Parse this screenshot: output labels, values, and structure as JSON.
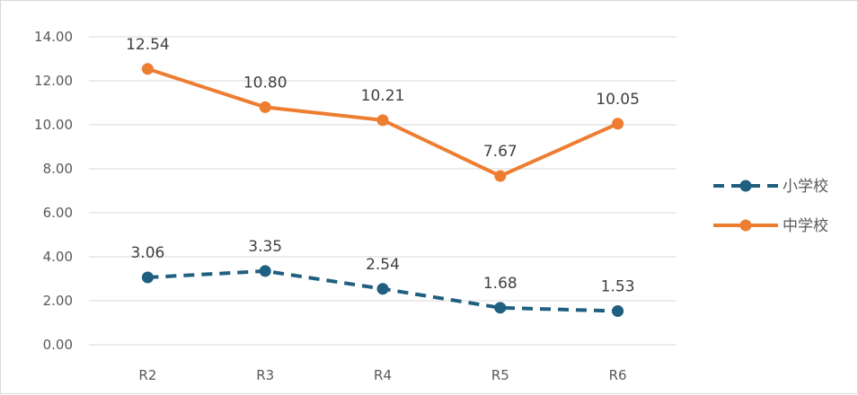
{
  "chart_data": {
    "type": "line",
    "title": "",
    "xlabel": "",
    "ylabel": "",
    "categories": [
      "R2",
      "R3",
      "R4",
      "R5",
      "R6"
    ],
    "ylim": [
      0,
      14
    ],
    "yticks": [
      "0.00",
      "2.00",
      "4.00",
      "6.00",
      "8.00",
      "10.00",
      "12.00",
      "14.00"
    ],
    "grid": true,
    "legend_position": "right",
    "series": [
      {
        "name": "小学校",
        "values": [
          3.06,
          3.35,
          2.54,
          1.68,
          1.53
        ],
        "labels": [
          "3.06",
          "3.35",
          "2.54",
          "1.68",
          "1.53"
        ],
        "color": "#1f5f7f",
        "line_style": "dashed",
        "marker": "circle"
      },
      {
        "name": "中学校",
        "values": [
          12.54,
          10.8,
          10.21,
          7.67,
          10.05
        ],
        "labels": [
          "12.54",
          "10.80",
          "10.21",
          "7.67",
          "10.05"
        ],
        "color": "#ed7d31",
        "line_style": "solid",
        "marker": "circle"
      }
    ]
  }
}
